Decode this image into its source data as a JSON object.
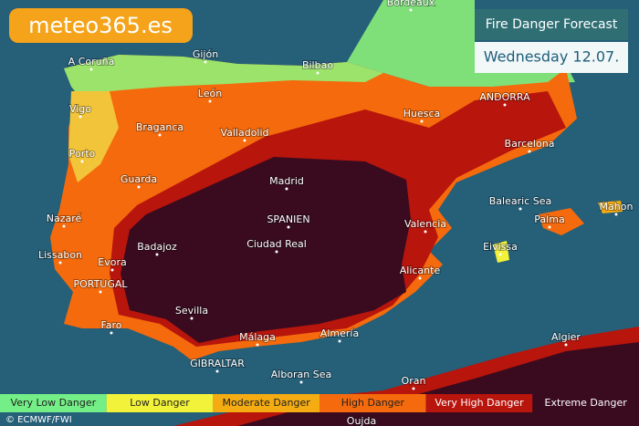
{
  "logo": "meteo365.es",
  "header": {
    "title": "Fire Danger Forecast",
    "date": "Wednesday 12.07."
  },
  "places": [
    "Bordeaux",
    "A Coruña",
    "Gijón",
    "Bilbao",
    "León",
    "Vigo",
    "Huesca",
    "ANDORRA",
    "Braganca",
    "Valladolid",
    "Barcelona",
    "Porto",
    "Guarda",
    "Madrid",
    "Balearic Sea",
    "Mahon",
    "Nazaré",
    "SPANIEN",
    "Valencia",
    "Palma",
    "Badajoz",
    "Ciudad Real",
    "Eivissa",
    "Lissabon",
    "Evora",
    "Alicante",
    "PORTUGAL",
    "Sevilla",
    "Faro",
    "Almería",
    "Málaga",
    "Algier",
    "GIBRALTAR",
    "Alboran Sea",
    "Oran",
    "Oujda"
  ],
  "legend": [
    {
      "label": "Very Low Danger",
      "color": "#74ee86"
    },
    {
      "label": "Low Danger",
      "color": "#f2f23a"
    },
    {
      "label": "Moderate Danger",
      "color": "#f5ac12"
    },
    {
      "label": "High Danger",
      "color": "#f56a0c"
    },
    {
      "label": "Very High Danger",
      "color": "#b8150c"
    },
    {
      "label": "Extreme Danger",
      "color": "#3a0b1f"
    }
  ],
  "credit": "© ECMWF/FWI"
}
